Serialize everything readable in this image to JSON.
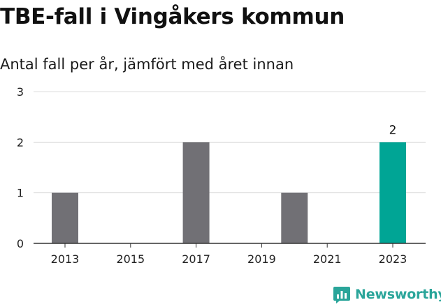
{
  "title": "TBE-fall i Vingåkers kommun",
  "subtitle": "Antal fall per år, jämfört med året innan",
  "logo_text": "Newsworthy",
  "colors": {
    "bar": "#717075",
    "highlight": "#00a595",
    "grid": "#dcdcdc",
    "axis": "#333333",
    "brand": "#2aa59a"
  },
  "chart_data": {
    "type": "bar",
    "title": "TBE-fall i Vingåkers kommun",
    "subtitle": "Antal fall per år, jämfört med året innan",
    "xlabel": "",
    "ylabel": "",
    "categories": [
      "2013",
      "2014",
      "2015",
      "2016",
      "2017",
      "2018",
      "2019",
      "2020",
      "2021",
      "2022",
      "2023"
    ],
    "values": [
      1,
      0,
      0,
      0,
      2,
      0,
      0,
      1,
      0,
      0,
      2
    ],
    "highlight_category": "2023",
    "data_labels": [
      {
        "category": "2023",
        "text": "2"
      }
    ],
    "x_tick_labels": [
      "2013",
      "2015",
      "2017",
      "2019",
      "2021",
      "2023"
    ],
    "y_ticks": [
      "0",
      "1",
      "2",
      "3"
    ],
    "ylim": [
      0,
      3
    ],
    "grid": true,
    "legend": "none"
  }
}
